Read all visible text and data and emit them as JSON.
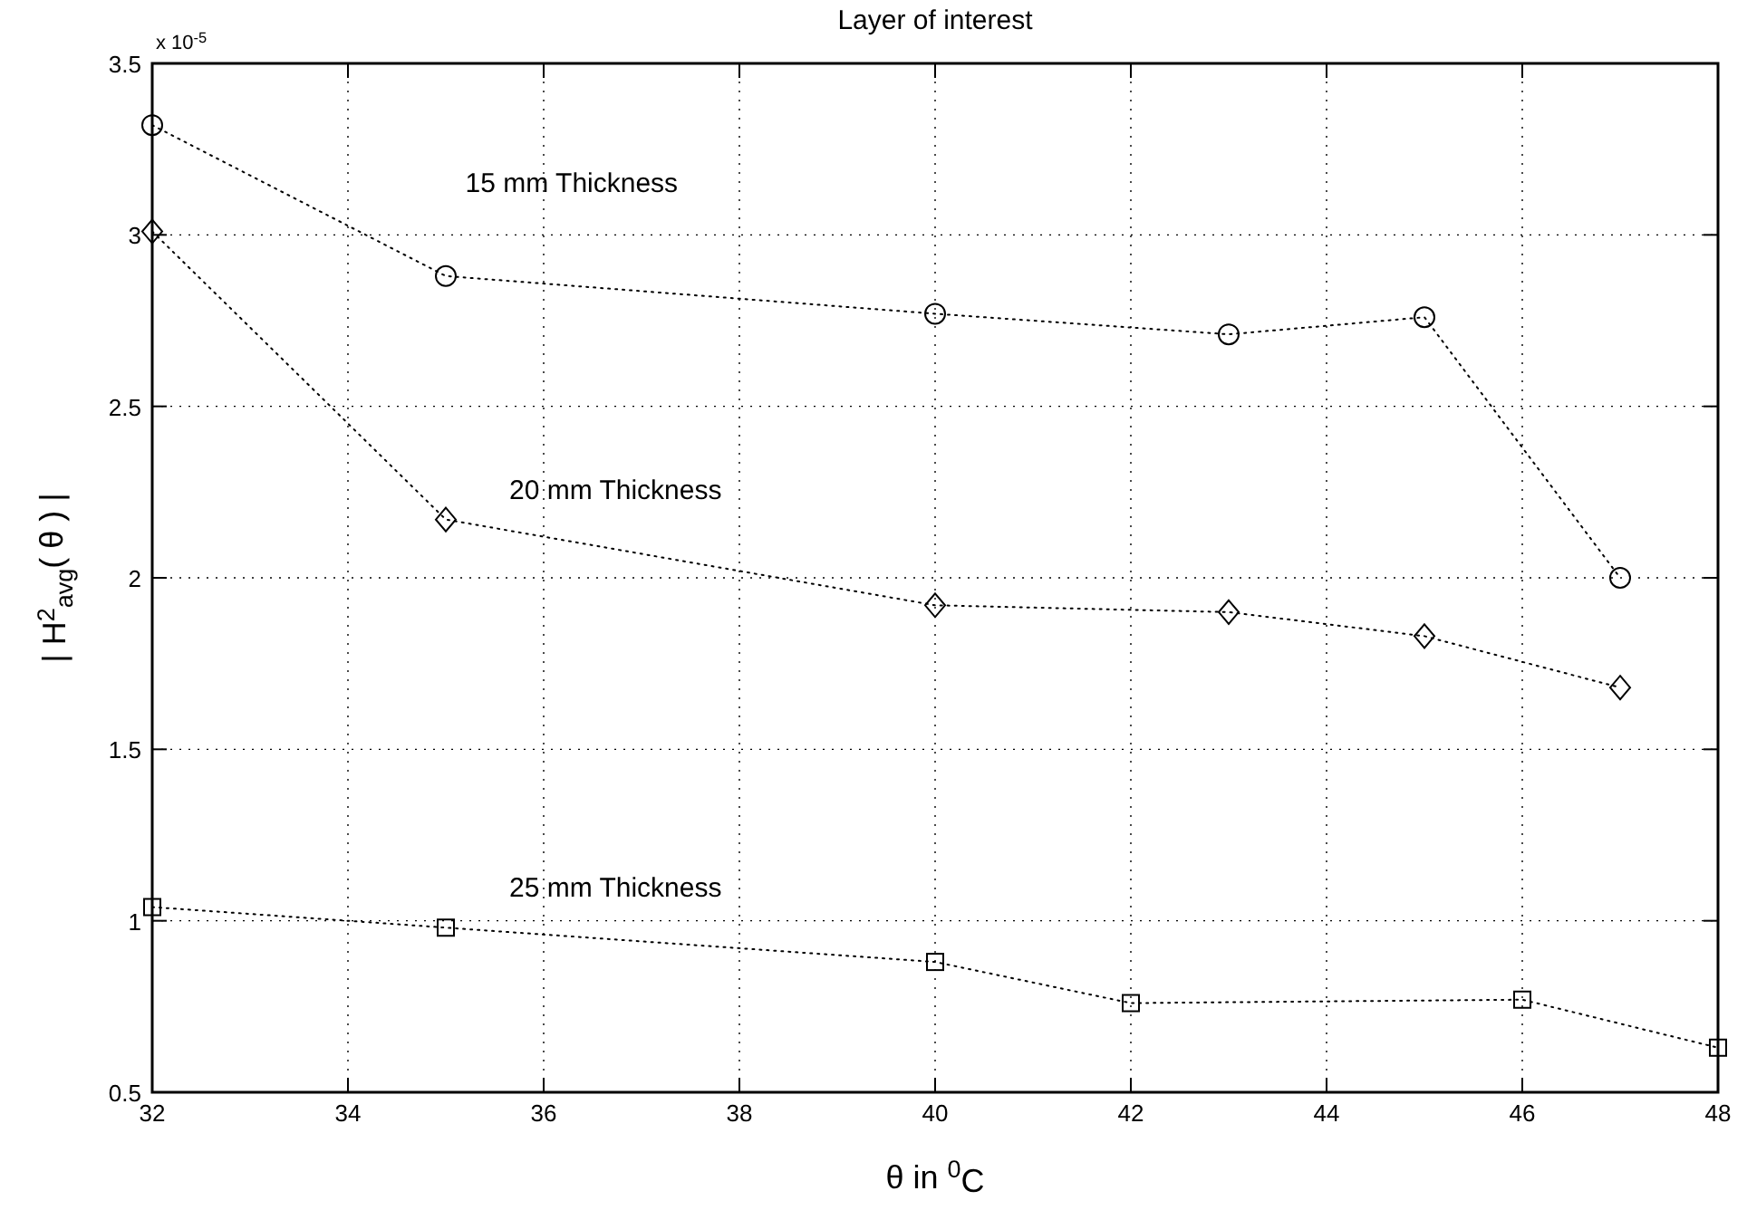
{
  "chart_data": {
    "type": "line",
    "title": "Layer of interest",
    "xlabel": "θ  in  $^{0}$C",
    "ylabel": "| H$^{2}$$_{avg}$( θ ) |",
    "xlim": [
      32,
      48
    ],
    "xticks": [
      32,
      34,
      36,
      38,
      40,
      42,
      44,
      46,
      48
    ],
    "ylim": [
      0.5,
      3.5
    ],
    "yticks": [
      0.5,
      1,
      1.5,
      2,
      2.5,
      3,
      3.5
    ],
    "grid": true,
    "line_style": "dotted",
    "series": [
      {
        "color": "#000000",
        "marker": "circle",
        "x": [
          32,
          35,
          40,
          43,
          45,
          47
        ],
        "values": [
          3.32,
          2.88,
          2.77,
          2.71,
          2.76,
          2.0
        ]
      },
      {
        "color": "#000000",
        "marker": "diamond",
        "x": [
          32,
          35,
          40,
          43,
          45,
          47
        ],
        "values": [
          3.01,
          2.17,
          1.92,
          1.9,
          1.83,
          1.68
        ]
      },
      {
        "color": "#000000",
        "marker": "square",
        "x": [
          32,
          35,
          40,
          42,
          46,
          48
        ],
        "values": [
          1.04,
          0.98,
          0.88,
          0.76,
          0.77,
          0.63
        ]
      }
    ],
    "annotations": [
      "x 10$^{-5}$",
      "15 mm Thickness",
      "20 mm Thickness",
      "25 mm Thickness"
    ]
  }
}
